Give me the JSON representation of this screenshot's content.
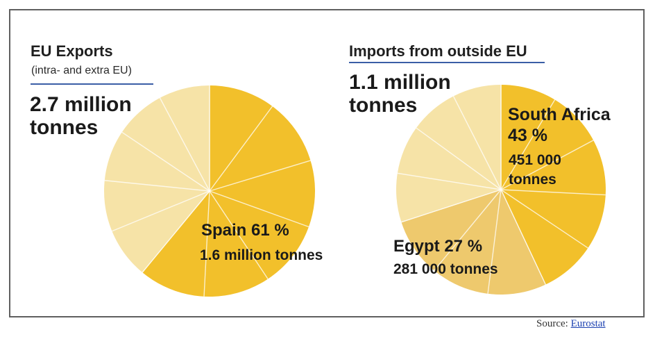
{
  "colors": {
    "slice_major": "#f2c02b",
    "slice_secondary": "#eec96d",
    "slice_other": "#f6e3a7",
    "title_rule": "#3a5ea6"
  },
  "chart_data": [
    {
      "type": "pie",
      "title": "EU Exports",
      "subtitle": "(intra- and extra EU)",
      "total": [
        "2.7 million",
        "tonnes"
      ],
      "slices": [
        {
          "name": "Spain",
          "percent": 61,
          "label": "Spain 61 %",
          "sublabel": "1.6 million tonnes",
          "segments": 6
        },
        {
          "name": "",
          "percent": 39,
          "label": "",
          "sublabel": "",
          "segments": 5
        }
      ]
    },
    {
      "type": "pie",
      "title": "Imports from outside EU",
      "total": [
        "1.1 million",
        "tonnes"
      ],
      "slices": [
        {
          "name": "South Africa",
          "percent": 43,
          "label": "South Africa",
          "label2": "43 %",
          "sublabel": [
            "451 000",
            "tonnes"
          ],
          "segments": 5
        },
        {
          "name": "Egypt",
          "percent": 27,
          "label": "Egypt 27 %",
          "sublabel": "281 000 tonnes",
          "segments": 3
        },
        {
          "name": "",
          "percent": 30,
          "label": "",
          "sublabel": "",
          "segments": 4
        }
      ]
    }
  ],
  "footer": {
    "source_prefix": "Source:",
    "source_link": "Eurostat"
  }
}
